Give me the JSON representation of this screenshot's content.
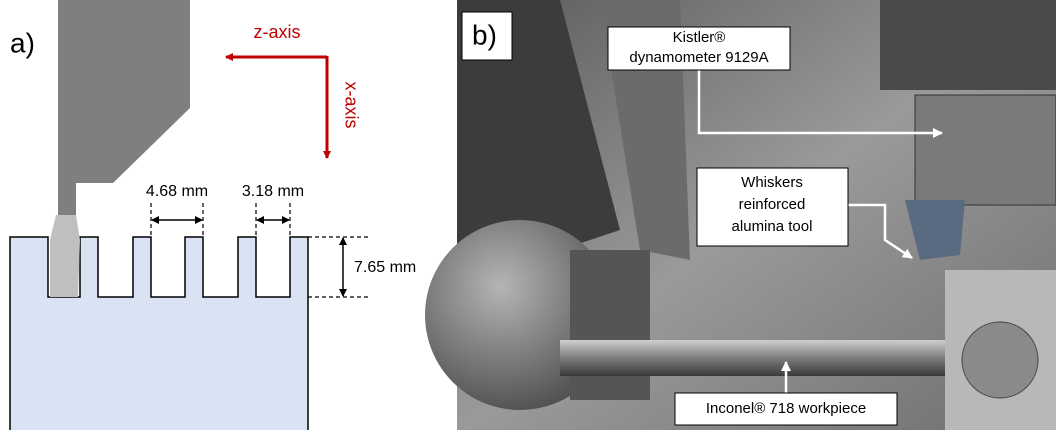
{
  "panel_a": {
    "label": "a)",
    "z_axis": "z-axis",
    "x_axis": "x-axis",
    "dimensions": [
      "4.68 mm",
      "3.18 mm",
      "7.65 mm"
    ]
  },
  "panel_b": {
    "label": "b)",
    "callouts": [
      {
        "lines": [
          "Kistler®",
          "dynamometer 9129A"
        ]
      },
      {
        "lines": [
          "Whiskers",
          "reinforced",
          "alumina tool"
        ]
      },
      {
        "lines": [
          "Inconel® 718 workpiece"
        ]
      }
    ]
  }
}
